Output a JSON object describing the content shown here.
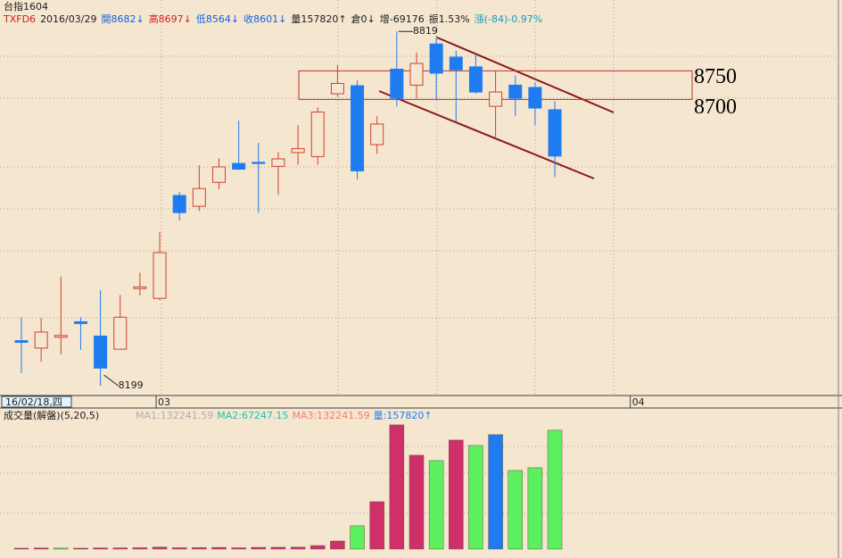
{
  "chart_data": {
    "type": "candlestick",
    "title": "台指1604",
    "info": [
      {
        "text": "TXFD6",
        "color": "#d02020"
      },
      {
        "text": "2016/03/29",
        "color": "#202020"
      },
      {
        "text": "開8682↓",
        "color": "#1060e0"
      },
      {
        "text": "高8697↓",
        "color": "#d02020"
      },
      {
        "text": "低8564↓",
        "color": "#1060e0"
      },
      {
        "text": "收8601↓",
        "color": "#1060e0"
      },
      {
        "text": "量157820↑",
        "color": "#202020"
      },
      {
        "text": "倉0↓",
        "color": "#202020"
      },
      {
        "text": "增-69176",
        "color": "#202020"
      },
      {
        "text": "振1.53%",
        "color": "#202020"
      },
      {
        "text": "漲(-84)-0.97%",
        "color": "#10a0c0"
      }
    ],
    "open": [
      8278,
      8265,
      8284,
      8311,
      8286,
      8263,
      8369,
      8352,
      8532,
      8513,
      8555,
      8588,
      8590,
      8583,
      8607,
      8600,
      8710,
      8724,
      8621,
      8753,
      8725,
      8797,
      8774,
      8757,
      8688,
      8725,
      8721,
      8682
    ],
    "high": [
      8319,
      8318,
      8390,
      8319,
      8366,
      8358,
      8397,
      8468,
      8538,
      8585,
      8597,
      8663,
      8624,
      8608,
      8655,
      8686,
      8760,
      8733,
      8671,
      8819,
      8782,
      8811,
      8785,
      8780,
      8749,
      8742,
      8730,
      8697
    ],
    "low": [
      8221,
      8241,
      8254,
      8262,
      8199,
      8263,
      8357,
      8349,
      8488,
      8505,
      8543,
      8577,
      8502,
      8533,
      8586,
      8586,
      8705,
      8560,
      8605,
      8688,
      8702,
      8699,
      8661,
      8710,
      8632,
      8671,
      8655,
      8564
    ],
    "close": [
      8275,
      8293,
      8287,
      8308,
      8230,
      8319,
      8372,
      8432,
      8502,
      8544,
      8582,
      8578,
      8588,
      8596,
      8614,
      8678,
      8728,
      8575,
      8657,
      8702,
      8763,
      8746,
      8752,
      8713,
      8713,
      8702,
      8685,
      8601
    ],
    "up_color": "#d04030",
    "down_color": "#1e7cf0",
    "ylim": [
      8182,
      8874
    ],
    "high_label": 8819,
    "low_label": 8199,
    "zone": [
      8750,
      8700
    ],
    "x_labels": [
      {
        "index": 7,
        "label": "03"
      },
      {
        "index": 31,
        "label": "04"
      }
    ],
    "cursor_label": "16/02/18,四",
    "volume": {
      "title": "成交量(解盤)(5,20,5)",
      "legend": [
        {
          "text": "MA1:132241.59",
          "color": "#b0b0b0"
        },
        {
          "text": "MA2:67247.15",
          "color": "#20c0b0"
        },
        {
          "text": "MA3:132241.59",
          "color": "#f08070"
        },
        {
          "text": "量:157820↑",
          "color": "#2080f0"
        }
      ],
      "values": [
        1200,
        1400,
        1300,
        1200,
        1500,
        1600,
        1800,
        2600,
        1800,
        1900,
        2200,
        1700,
        2300,
        2400,
        2600,
        4700,
        10700,
        30900,
        62900,
        164900,
        124600,
        117500,
        144800,
        137600,
        151900,
        104400,
        108000,
        157820
      ],
      "colors": [
        "#d0306a",
        "#d0306a",
        "#5cf060",
        "#d0306a",
        "#d0306a",
        "#d0306a",
        "#d0306a",
        "#d0306a",
        "#d0306a",
        "#d0306a",
        "#d0306a",
        "#d0306a",
        "#d0306a",
        "#d0306a",
        "#d0306a",
        "#d0306a",
        "#d0306a",
        "#5cf060",
        "#d0306a",
        "#d0306a",
        "#d0306a",
        "#5cf060",
        "#d0306a",
        "#5cf060",
        "#1e7cf0",
        "#5cf060",
        "#5cf060",
        "#5cf060"
      ],
      "ylim": [
        0,
        166000
      ]
    }
  }
}
